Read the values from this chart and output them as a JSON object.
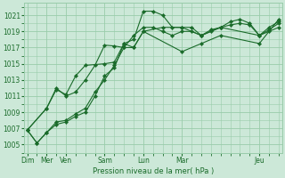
{
  "background_color": "#cce8d8",
  "grid_color": "#99ccaa",
  "line_color": "#1a6b2a",
  "marker_color": "#1a6b2a",
  "xlabel": "Pression niveau de la mer( hPa )",
  "ylim": [
    1004.0,
    1022.5
  ],
  "yticks": [
    1005,
    1007,
    1009,
    1011,
    1013,
    1015,
    1017,
    1019,
    1021
  ],
  "x_tick_positions": [
    0,
    12,
    24,
    48,
    72,
    96,
    144
  ],
  "x_tick_labels": [
    "Dim",
    "Mer",
    "Ven",
    "Sam",
    "Lun",
    "Mar",
    "Jeu"
  ],
  "xlim": [
    -2,
    158
  ],
  "series": [
    {
      "x": [
        0,
        6,
        12,
        18,
        24,
        30,
        36,
        42,
        48,
        54,
        60,
        66,
        72,
        78,
        84,
        90,
        96,
        102,
        108,
        114,
        120,
        126,
        132,
        138,
        144,
        150,
        156
      ],
      "y": [
        1006.8,
        1005.2,
        1006.5,
        1007.5,
        1007.8,
        1008.5,
        1009.0,
        1011.0,
        1013.5,
        1014.5,
        1017.5,
        1018.0,
        1021.5,
        1021.5,
        1021.0,
        1019.5,
        1019.5,
        1019.5,
        1018.5,
        1019.0,
        1019.5,
        1020.2,
        1020.5,
        1020.0,
        1018.5,
        1019.5,
        1020.2
      ]
    },
    {
      "x": [
        0,
        6,
        12,
        18,
        24,
        30,
        36,
        42,
        48,
        54,
        60,
        66,
        72,
        78,
        84,
        90,
        96,
        102,
        108,
        114,
        120,
        126,
        132,
        138,
        144,
        150,
        156
      ],
      "y": [
        1006.8,
        1005.2,
        1006.5,
        1007.8,
        1008.0,
        1008.8,
        1009.5,
        1011.5,
        1013.0,
        1014.8,
        1017.0,
        1018.5,
        1019.5,
        1019.5,
        1019.0,
        1018.5,
        1019.0,
        1019.0,
        1018.5,
        1019.2,
        1019.5,
        1019.8,
        1020.0,
        1019.8,
        1018.5,
        1019.0,
        1019.5
      ]
    },
    {
      "x": [
        0,
        12,
        18,
        24,
        30,
        36,
        42,
        48,
        54,
        60,
        66,
        72,
        84,
        96,
        108,
        120,
        144,
        150,
        156
      ],
      "y": [
        1006.8,
        1009.5,
        1012.0,
        1011.0,
        1011.5,
        1013.0,
        1014.8,
        1017.3,
        1017.2,
        1017.0,
        1017.0,
        1019.0,
        1019.5,
        1019.5,
        1018.5,
        1019.5,
        1018.5,
        1019.2,
        1020.0
      ]
    },
    {
      "x": [
        0,
        12,
        18,
        24,
        30,
        36,
        48,
        54,
        60,
        66,
        72,
        96,
        108,
        120,
        144,
        156
      ],
      "y": [
        1006.8,
        1009.5,
        1011.8,
        1011.2,
        1013.5,
        1014.8,
        1015.0,
        1015.2,
        1017.5,
        1017.0,
        1019.0,
        1016.5,
        1017.5,
        1018.5,
        1017.5,
        1020.5
      ]
    }
  ]
}
